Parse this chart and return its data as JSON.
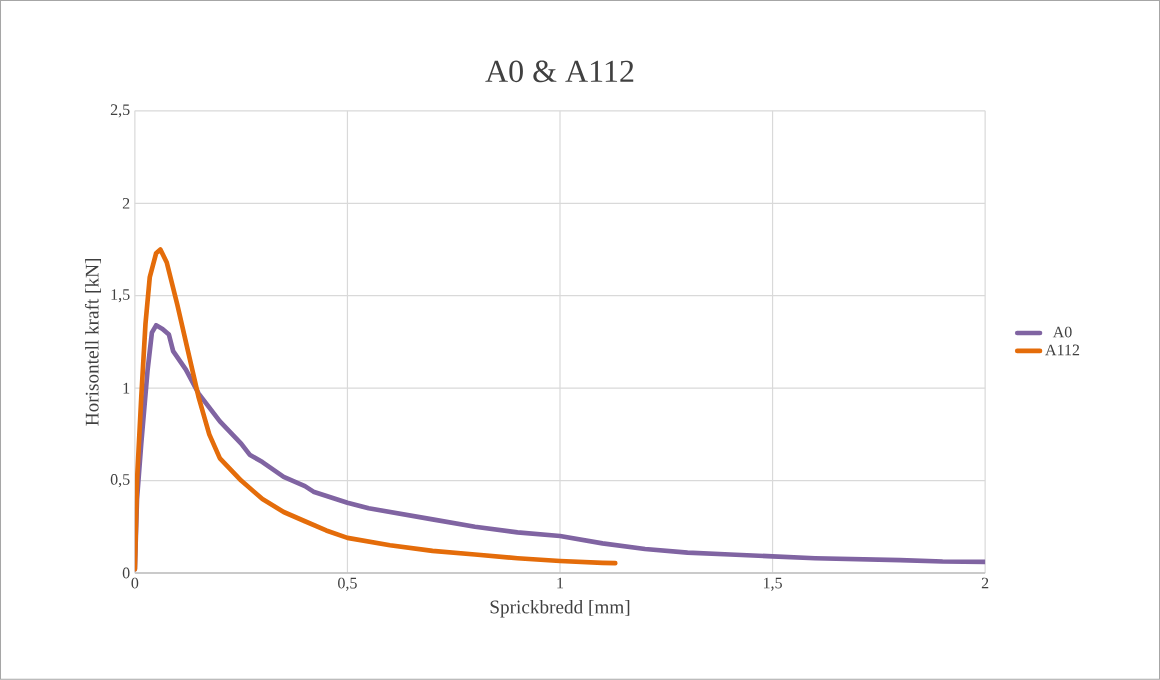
{
  "chart_data": {
    "type": "line",
    "title": "A0 & A112",
    "xlabel": "Sprickbredd [mm]",
    "ylabel": "Horisontell kraft [kN]",
    "series": [
      {
        "name": "A0",
        "color": "#8064a2",
        "x": [
          0,
          0.005,
          0.015,
          0.03,
          0.04,
          0.05,
          0.065,
          0.08,
          0.09,
          0.12,
          0.15,
          0.2,
          0.25,
          0.27,
          0.3,
          0.35,
          0.4,
          0.42,
          0.5,
          0.55,
          0.6,
          0.7,
          0.8,
          0.9,
          1.0,
          1.1,
          1.2,
          1.3,
          1.4,
          1.5,
          1.6,
          1.7,
          1.8,
          1.9,
          2.0
        ],
        "values": [
          0.02,
          0.4,
          0.7,
          1.1,
          1.3,
          1.34,
          1.32,
          1.29,
          1.2,
          1.1,
          0.97,
          0.82,
          0.7,
          0.64,
          0.6,
          0.52,
          0.47,
          0.44,
          0.38,
          0.35,
          0.33,
          0.29,
          0.25,
          0.22,
          0.2,
          0.16,
          0.13,
          0.11,
          0.1,
          0.09,
          0.08,
          0.075,
          0.07,
          0.062,
          0.06
        ]
      },
      {
        "name": "A112",
        "color": "#e46c0a",
        "x": [
          0,
          0.005,
          0.015,
          0.025,
          0.035,
          0.05,
          0.06,
          0.075,
          0.1,
          0.125,
          0.15,
          0.175,
          0.2,
          0.25,
          0.3,
          0.35,
          0.4,
          0.45,
          0.5,
          0.6,
          0.7,
          0.8,
          0.9,
          1.0,
          1.1,
          1.13
        ],
        "values": [
          0.02,
          0.5,
          0.95,
          1.35,
          1.6,
          1.73,
          1.75,
          1.68,
          1.45,
          1.2,
          0.95,
          0.75,
          0.62,
          0.5,
          0.4,
          0.33,
          0.28,
          0.23,
          0.19,
          0.15,
          0.12,
          0.1,
          0.08,
          0.065,
          0.055,
          0.053
        ]
      }
    ],
    "xlim": [
      0,
      2
    ],
    "ylim": [
      0,
      2.5
    ],
    "xticks": [
      0,
      {
        "value": 0.5,
        "label": "0,5"
      },
      1,
      {
        "value": 1.5,
        "label": "1,5"
      },
      2
    ],
    "yticks": [
      0,
      {
        "value": 0.5,
        "label": "0,5"
      },
      1,
      {
        "value": 1.5,
        "label": "1,5"
      },
      2,
      {
        "value": 2.5,
        "label": "2,5"
      }
    ],
    "grid": true,
    "legend": "right",
    "marker": "none",
    "line_style": "solid"
  }
}
